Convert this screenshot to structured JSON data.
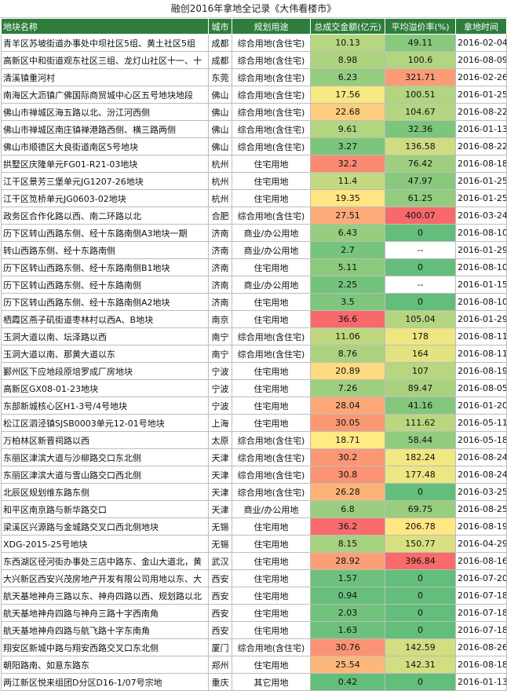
{
  "title": "融创2016年拿地全记录《大伟看楼市》",
  "headers": [
    "地块名称",
    "城市",
    "规划用途",
    "总成交金额(亿元)",
    "平均溢价率(%)",
    "拿地时间"
  ],
  "rows": [
    [
      "青羊区苏坡街道办事处中坝社区5组、黄土社区5组",
      "成都",
      "综合用地(含住宅)",
      "10.13",
      "49.11",
      "2016-02-04"
    ],
    [
      "高新区中和街道观东社区三组、龙灯山社区十一、十",
      "成都",
      "综合用地(含住宅)",
      "8.98",
      "100.6",
      "2016-08-09"
    ],
    [
      "清溪镇重河村",
      "东莞",
      "综合用地(含住宅)",
      "6.23",
      "321.71",
      "2016-02-26"
    ],
    [
      "南海区大沥镇广佛国际商贸城中心区五号地块地段",
      "佛山",
      "综合用地(含住宅)",
      "17.56",
      "100.51",
      "2016-01-25"
    ],
    [
      "佛山市禅城区海五路以北、汾江河西侧",
      "佛山",
      "综合用地(含住宅)",
      "22.68",
      "104.67",
      "2016-08-22"
    ],
    [
      "佛山市禅城区南庄镇禅港路西侧、横三路两侧",
      "佛山",
      "综合用地(含住宅)",
      "9.61",
      "32.36",
      "2016-01-13"
    ],
    [
      "佛山市顺德区大良街道南区5号地块",
      "佛山",
      "综合用地(含住宅)",
      "3.27",
      "136.58",
      "2016-08-22"
    ],
    [
      "拱墅区庆隆单元FG01-R21-03地块",
      "杭州",
      "住宅用地",
      "32.2",
      "76.42",
      "2016-08-18"
    ],
    [
      "江干区景芳三堡单元JG1207-26地块",
      "杭州",
      "住宅用地",
      "11.4",
      "47.97",
      "2016-01-25"
    ],
    [
      "江干区笕桥单元JG0603-02地块",
      "杭州",
      "住宅用地",
      "19.35",
      "61.25",
      "2016-01-25"
    ],
    [
      "政务区合作化路以西、南二环路以北",
      "合肥",
      "综合用地(含住宅)",
      "27.51",
      "400.07",
      "2016-03-24"
    ],
    [
      "历下区转山西路东侧、经十东路南侧A3地块一期",
      "济南",
      "商业/办公用地",
      "6.43",
      "0",
      "2016-08-10"
    ],
    [
      "转山西路东侧、经十东路南侧",
      "济南",
      "商业/办公用地",
      "2.7",
      "--",
      "2016-01-29"
    ],
    [
      "历下区转山西路东侧、经十东路南侧B1地块",
      "济南",
      "住宅用地",
      "5.11",
      "0",
      "2016-08-10"
    ],
    [
      "历下区转山西路东侧、经十东路南侧",
      "济南",
      "商业/办公用地",
      "2.25",
      "--",
      "2016-01-15"
    ],
    [
      "历下区转山西路东侧、经十东路南侧A2地块",
      "济南",
      "住宅用地",
      "3.5",
      "0",
      "2016-08-10"
    ],
    [
      "栖霞区燕子矶街道枣林村以西A、B地块",
      "南京",
      "住宅用地",
      "36.6",
      "105.04",
      "2016-01-29"
    ],
    [
      "玉洞大道以南、坛泽路以西",
      "南宁",
      "综合用地(含住宅)",
      "11.06",
      "178",
      "2016-08-11"
    ],
    [
      "玉洞大道以南、那黄大道以东",
      "南宁",
      "综合用地(含住宅)",
      "8.76",
      "164",
      "2016-08-11"
    ],
    [
      "鄞州区下应地段原培罗成厂房地块",
      "宁波",
      "住宅用地",
      "20.89",
      "107",
      "2016-08-19"
    ],
    [
      "高新区GX08-01-23地块",
      "宁波",
      "住宅用地",
      "7.26",
      "89.47",
      "2016-08-05"
    ],
    [
      "东部新城核心区H1-3号/4号地块",
      "宁波",
      "住宅用地",
      "28.04",
      "41.16",
      "2016-01-20"
    ],
    [
      "松江区泗泾镇SJSB0003单元12-01号地块",
      "上海",
      "住宅用地",
      "30.05",
      "111.62",
      "2016-05-11"
    ],
    [
      "万柏林区新晋祠路以西",
      "太原",
      "综合用地(含住宅)",
      "18.71",
      "58.44",
      "2016-05-18"
    ],
    [
      "东丽区津滨大道与沙柳路交口东北侧",
      "天津",
      "综合用地(含住宅)",
      "30.2",
      "182.24",
      "2016-08-24"
    ],
    [
      "东丽区津滨大道与雪山路交口西北侧",
      "天津",
      "综合用地(含住宅)",
      "30.8",
      "177.48",
      "2016-08-24"
    ],
    [
      "北辰区规划维东路东侧",
      "天津",
      "综合用地(含住宅)",
      "26.28",
      "0",
      "2016-03-25"
    ],
    [
      "和平区南京路与新华路交口",
      "天津",
      "商业/办公用地",
      "6.8",
      "69.75",
      "2016-08-25"
    ],
    [
      "梁溪区兴源路与金城路交叉口西北侧地块",
      "无锡",
      "住宅用地",
      "36.2",
      "206.78",
      "2016-08-19"
    ],
    [
      "XDG-2015-25号地块",
      "无锡",
      "住宅用地",
      "8.15",
      "150.77",
      "2016-04-29"
    ],
    [
      "东西湖区径河街办事处三店中路东、金山大道北，黄",
      "武汉",
      "住宅用地",
      "28.92",
      "396.84",
      "2016-08-16"
    ],
    [
      "大兴新区西安兴茂房地产开发有限公司用地以东、大",
      "西安",
      "住宅用地",
      "1.57",
      "0",
      "2016-07-20"
    ],
    [
      "航天基地神舟三路以东、神舟四路以西、规划路以北",
      "西安",
      "住宅用地",
      "0.94",
      "0",
      "2016-07-18"
    ],
    [
      "航天基地神舟四路与神舟三路十字西南角",
      "西安",
      "住宅用地",
      "2.03",
      "0",
      "2016-07-18"
    ],
    [
      "航天基地神舟四路与航飞路十字东南角",
      "西安",
      "住宅用地",
      "1.63",
      "0",
      "2016-07-18"
    ],
    [
      "翔安区新城中路与翔安西路交叉口东北侧",
      "厦门",
      "综合用地(含住宅)",
      "30.76",
      "142.59",
      "2016-08-26"
    ],
    [
      "朝阳路南、如意东路东",
      "郑州",
      "住宅用地",
      "25.54",
      "142.31",
      "2016-08-18"
    ],
    [
      "两江新区悦来组团D分区D16-1/07号宗地",
      "重庆",
      "其它用地",
      "0.42",
      "0",
      "2016-01-13"
    ]
  ],
  "colors": {
    "header_bg": "#2e7d3c",
    "scale_low": "#63be7b",
    "scale_mid": "#ffeb84",
    "scale_high": "#f8696b"
  }
}
